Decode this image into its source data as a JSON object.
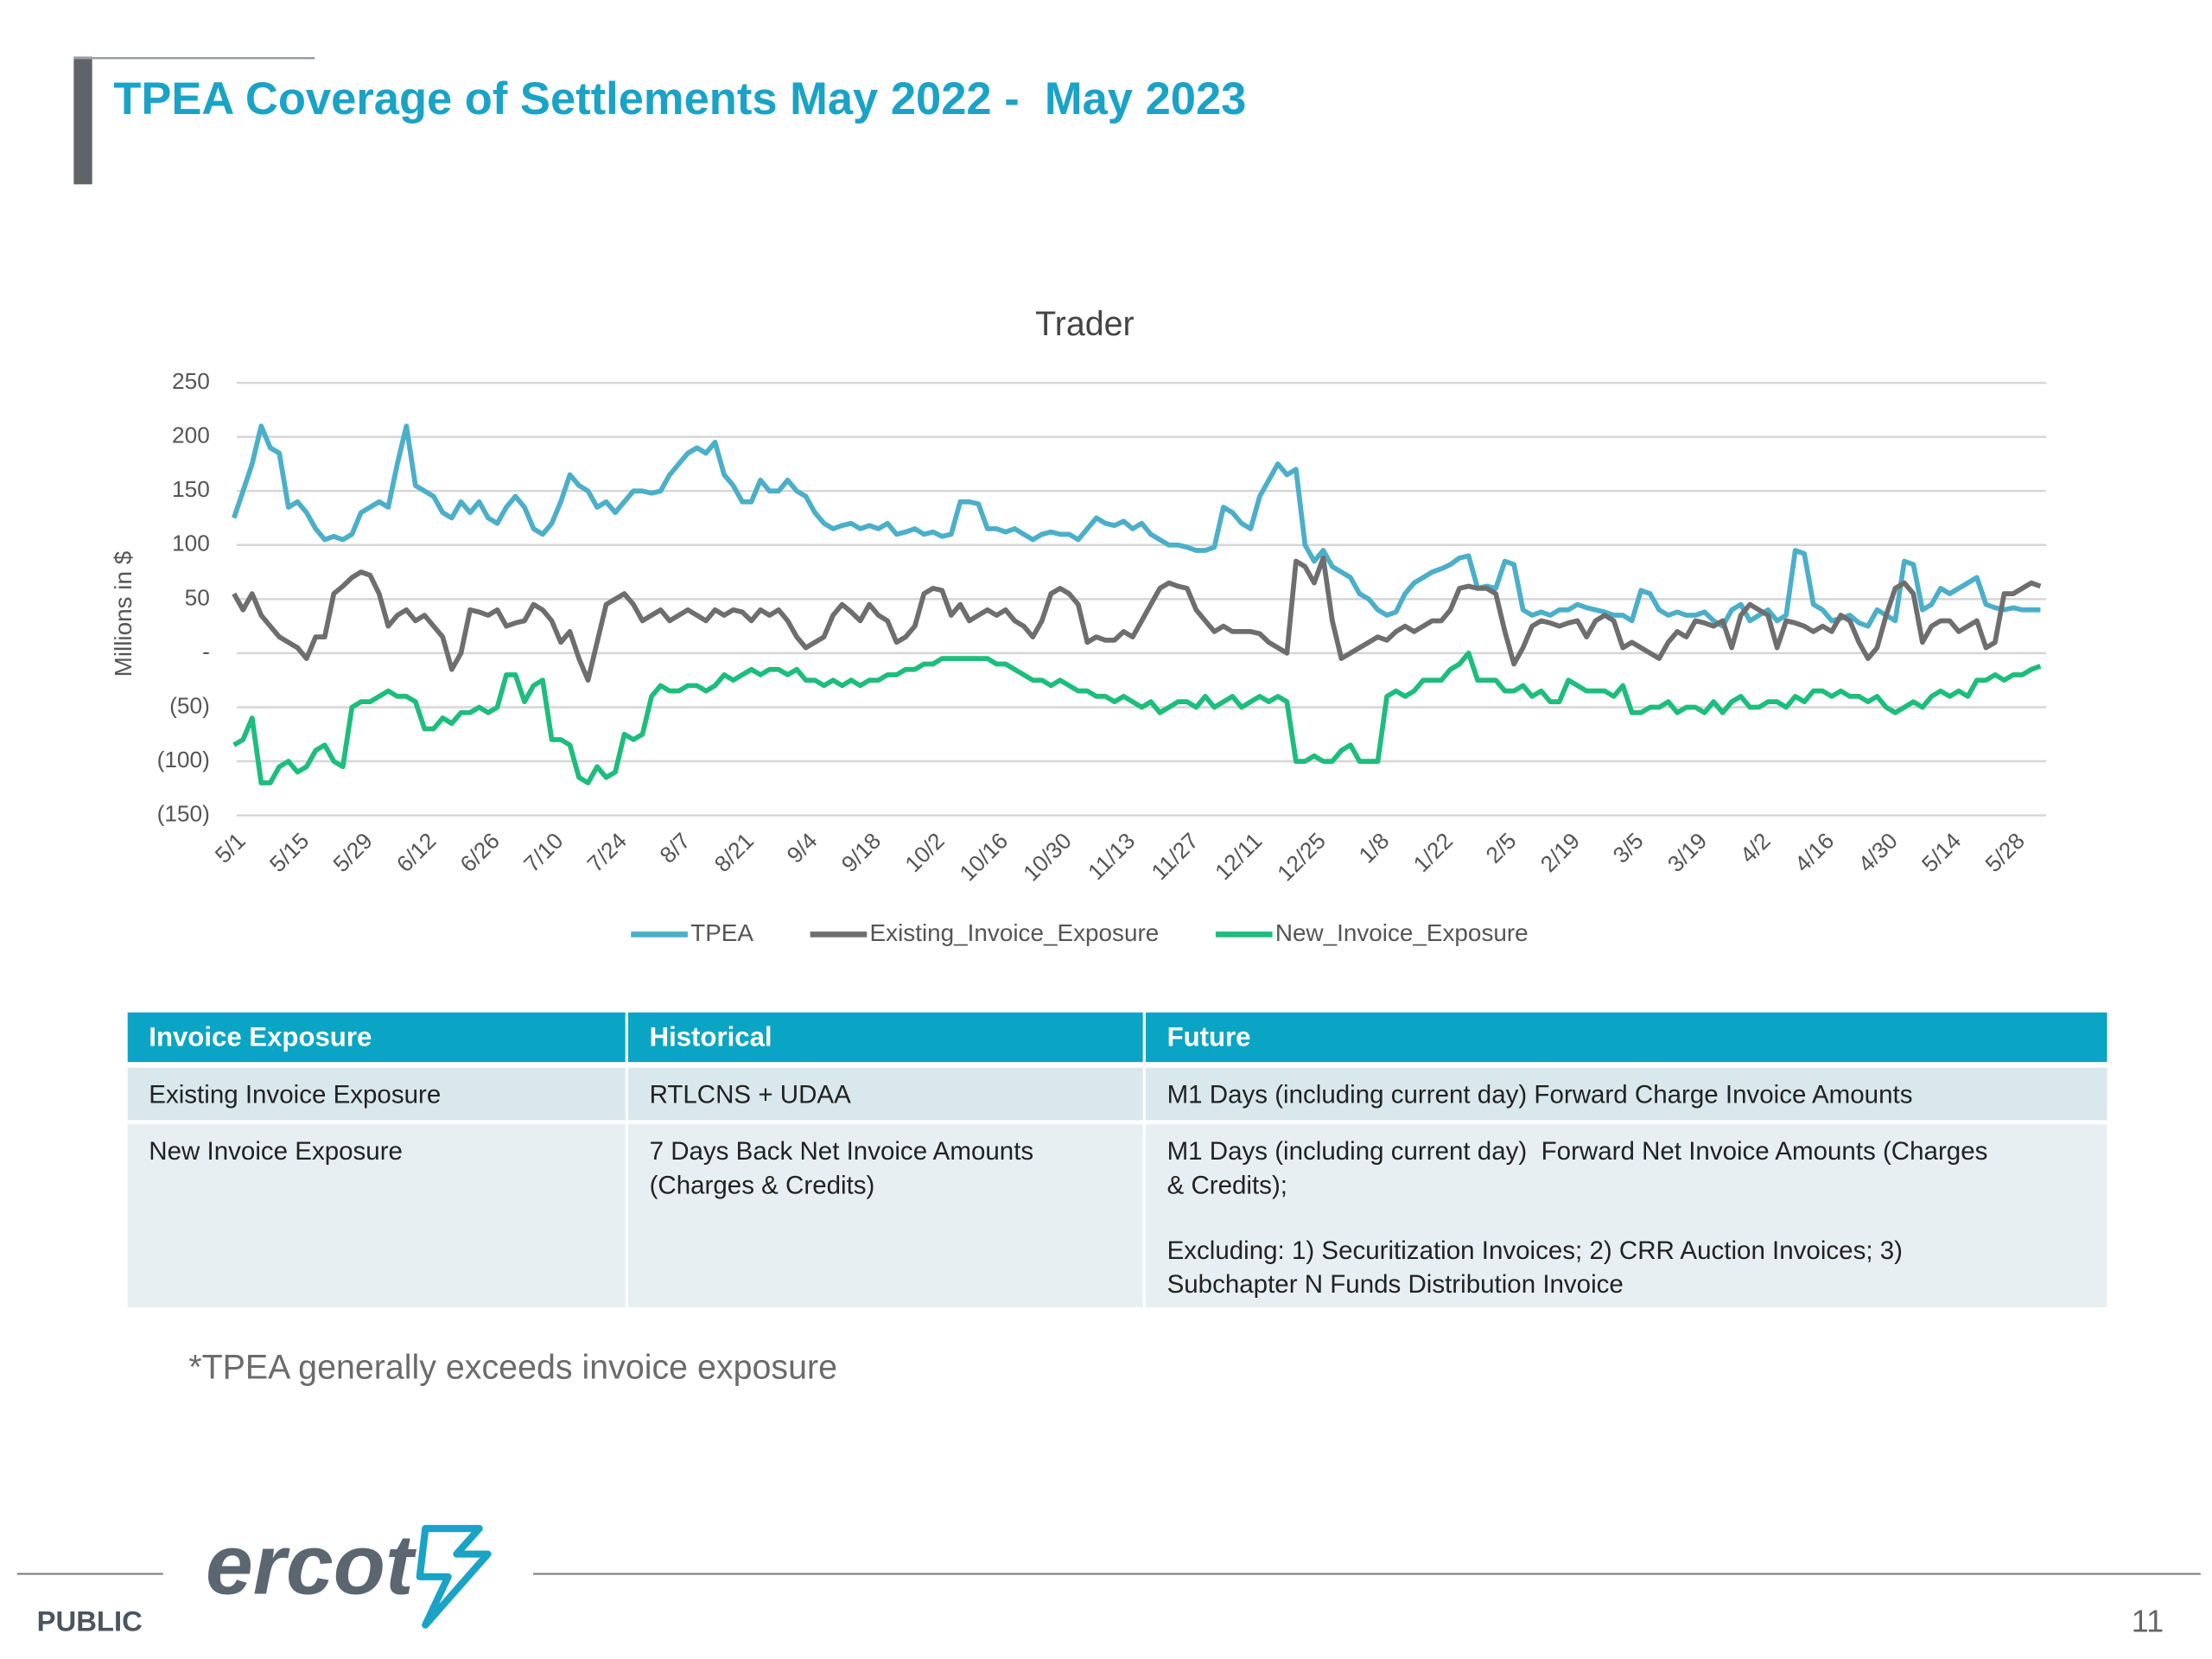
{
  "header": {
    "title": "TPEA Coverage of Settlements May 2022 -  May 2023"
  },
  "chart_data": {
    "type": "line",
    "title": "Trader",
    "y_label": "Millions in $",
    "categories": [
      "5/1",
      null,
      null,
      null,
      null,
      null,
      null,
      "5/15",
      null,
      null,
      null,
      null,
      null,
      null,
      "5/29",
      null,
      null,
      null,
      null,
      null,
      null,
      "6/12",
      null,
      null,
      null,
      null,
      null,
      null,
      "6/26",
      null,
      null,
      null,
      null,
      null,
      null,
      "7/10",
      null,
      null,
      null,
      null,
      null,
      null,
      "7/24",
      null,
      null,
      null,
      null,
      null,
      null,
      "8/7",
      null,
      null,
      null,
      null,
      null,
      null,
      "8/21",
      null,
      null,
      null,
      null,
      null,
      null,
      "9/4",
      null,
      null,
      null,
      null,
      null,
      null,
      "9/18",
      null,
      null,
      null,
      null,
      null,
      null,
      "10/2",
      null,
      null,
      null,
      null,
      null,
      null,
      "10/16",
      null,
      null,
      null,
      null,
      null,
      null,
      "10/30",
      null,
      null,
      null,
      null,
      null,
      null,
      "11/13",
      null,
      null,
      null,
      null,
      null,
      null,
      "11/27",
      null,
      null,
      null,
      null,
      null,
      null,
      "12/11",
      null,
      null,
      null,
      null,
      null,
      null,
      "12/25",
      null,
      null,
      null,
      null,
      null,
      null,
      "1/8",
      null,
      null,
      null,
      null,
      null,
      null,
      "1/22",
      null,
      null,
      null,
      null,
      null,
      null,
      "2/5",
      null,
      null,
      null,
      null,
      null,
      null,
      "2/19",
      null,
      null,
      null,
      null,
      null,
      null,
      "3/5",
      null,
      null,
      null,
      null,
      null,
      null,
      "3/19",
      null,
      null,
      null,
      null,
      null,
      null,
      "4/2",
      null,
      null,
      null,
      null,
      null,
      null,
      "4/16",
      null,
      null,
      null,
      null,
      null,
      null,
      "4/30",
      null,
      null,
      null,
      null,
      null,
      null,
      "5/14",
      null,
      null,
      null,
      null,
      null,
      null,
      "5/28",
      null,
      null,
      null
    ],
    "series": [
      {
        "name": "TPEA",
        "color": "#4bafc9",
        "values": [
          125,
          150,
          175,
          210,
          190,
          185,
          135,
          140,
          130,
          115,
          105,
          108,
          105,
          110,
          130,
          135,
          140,
          135,
          175,
          210,
          155,
          150,
          145,
          130,
          125,
          140,
          130,
          140,
          125,
          120,
          135,
          145,
          135,
          115,
          110,
          120,
          140,
          165,
          155,
          150,
          135,
          140,
          130,
          140,
          150,
          150,
          148,
          150,
          165,
          175,
          185,
          190,
          185,
          195,
          165,
          155,
          140,
          140,
          160,
          150,
          150,
          160,
          150,
          145,
          130,
          120,
          115,
          118,
          120,
          115,
          118,
          115,
          120,
          110,
          112,
          115,
          110,
          112,
          108,
          110,
          140,
          140,
          138,
          115,
          115,
          112,
          115,
          110,
          105,
          110,
          112,
          110,
          110,
          105,
          115,
          125,
          120,
          118,
          122,
          115,
          120,
          110,
          105,
          100,
          100,
          98,
          95,
          95,
          98,
          135,
          130,
          120,
          115,
          145,
          160,
          175,
          165,
          170,
          100,
          85,
          95,
          80,
          75,
          70,
          55,
          50,
          40,
          35,
          38,
          55,
          65,
          70,
          75,
          78,
          82,
          88,
          90,
          60,
          62,
          60,
          85,
          82,
          40,
          35,
          38,
          35,
          40,
          40,
          45,
          42,
          40,
          38,
          35,
          35,
          30,
          58,
          55,
          40,
          35,
          38,
          35,
          35,
          38,
          30,
          25,
          40,
          45,
          30,
          35,
          40,
          30,
          35,
          95,
          92,
          45,
          40,
          30,
          32,
          35,
          28,
          25,
          40,
          35,
          30,
          85,
          82,
          40,
          45,
          60,
          55,
          60,
          65,
          70,
          45,
          42,
          40,
          42,
          40,
          40,
          40
        ]
      },
      {
        "name": "Existing_Invoice_Exposure",
        "color": "#6e6e6e",
        "values": [
          55,
          40,
          55,
          35,
          25,
          15,
          10,
          5,
          -5,
          15,
          15,
          55,
          62,
          70,
          75,
          72,
          55,
          25,
          35,
          40,
          30,
          35,
          25,
          15,
          -15,
          0,
          40,
          38,
          35,
          40,
          25,
          28,
          30,
          45,
          40,
          30,
          10,
          20,
          -5,
          -25,
          10,
          45,
          50,
          55,
          45,
          30,
          35,
          40,
          30,
          35,
          40,
          35,
          30,
          40,
          35,
          40,
          38,
          30,
          40,
          35,
          40,
          30,
          15,
          5,
          10,
          15,
          35,
          45,
          38,
          30,
          45,
          35,
          30,
          10,
          15,
          25,
          55,
          60,
          58,
          35,
          45,
          30,
          35,
          40,
          35,
          40,
          30,
          25,
          15,
          30,
          55,
          60,
          55,
          45,
          10,
          15,
          12,
          12,
          20,
          15,
          30,
          45,
          60,
          65,
          62,
          60,
          40,
          30,
          20,
          25,
          20,
          20,
          20,
          18,
          10,
          5,
          0,
          85,
          80,
          65,
          88,
          30,
          -5,
          0,
          5,
          10,
          15,
          12,
          20,
          25,
          20,
          25,
          30,
          30,
          40,
          60,
          62,
          60,
          60,
          55,
          20,
          -10,
          5,
          25,
          30,
          28,
          25,
          28,
          30,
          15,
          30,
          35,
          30,
          5,
          10,
          5,
          0,
          -5,
          10,
          20,
          15,
          30,
          28,
          25,
          30,
          5,
          35,
          45,
          40,
          35,
          5,
          30,
          28,
          25,
          20,
          25,
          20,
          35,
          30,
          10,
          -5,
          5,
          35,
          60,
          65,
          55,
          10,
          25,
          30,
          30,
          20,
          25,
          30,
          5,
          10,
          55,
          55,
          60,
          65,
          62
        ]
      },
      {
        "name": "New_Invoice_Exposure",
        "color": "#1dbd7d",
        "values": [
          -85,
          -80,
          -60,
          -120,
          -120,
          -105,
          -100,
          -110,
          -105,
          -90,
          -85,
          -100,
          -105,
          -50,
          -45,
          -45,
          -40,
          -35,
          -40,
          -40,
          -45,
          -70,
          -70,
          -60,
          -65,
          -55,
          -55,
          -50,
          -55,
          -50,
          -20,
          -20,
          -45,
          -30,
          -25,
          -80,
          -80,
          -85,
          -115,
          -120,
          -105,
          -115,
          -110,
          -75,
          -80,
          -75,
          -40,
          -30,
          -35,
          -35,
          -30,
          -30,
          -35,
          -30,
          -20,
          -25,
          -20,
          -15,
          -20,
          -15,
          -15,
          -20,
          -15,
          -25,
          -25,
          -30,
          -25,
          -30,
          -25,
          -30,
          -25,
          -25,
          -20,
          -20,
          -15,
          -15,
          -10,
          -10,
          -5,
          -5,
          -5,
          -5,
          -5,
          -5,
          -10,
          -10,
          -15,
          -20,
          -25,
          -25,
          -30,
          -25,
          -30,
          -35,
          -35,
          -40,
          -40,
          -45,
          -40,
          -45,
          -50,
          -45,
          -55,
          -50,
          -45,
          -45,
          -50,
          -40,
          -50,
          -45,
          -40,
          -50,
          -45,
          -40,
          -45,
          -40,
          -45,
          -100,
          -100,
          -95,
          -100,
          -100,
          -90,
          -85,
          -100,
          -100,
          -100,
          -40,
          -35,
          -40,
          -35,
          -25,
          -25,
          -25,
          -15,
          -10,
          0,
          -25,
          -25,
          -25,
          -35,
          -35,
          -30,
          -40,
          -35,
          -45,
          -45,
          -25,
          -30,
          -35,
          -35,
          -35,
          -40,
          -30,
          -55,
          -55,
          -50,
          -50,
          -45,
          -55,
          -50,
          -50,
          -55,
          -45,
          -55,
          -45,
          -40,
          -50,
          -50,
          -45,
          -45,
          -50,
          -40,
          -45,
          -35,
          -35,
          -40,
          -35,
          -40,
          -40,
          -45,
          -40,
          -50,
          -55,
          -50,
          -45,
          -50,
          -40,
          -35,
          -40,
          -35,
          -40,
          -25,
          -25,
          -20,
          -25,
          -20,
          -20,
          -15,
          -12
        ]
      }
    ],
    "ylim": [
      -150,
      250
    ],
    "yticks": [
      {
        "value": -150,
        "label": "(150)"
      },
      {
        "value": -100,
        "label": "(100)"
      },
      {
        "value": -50,
        "label": "(50)"
      },
      {
        "value": 0,
        "label": "-"
      },
      50,
      100,
      150,
      200,
      250
    ],
    "grid": true,
    "legend": "bottom"
  },
  "table": {
    "header": [
      "Invoice Exposure",
      "Historical",
      "Future"
    ],
    "rows": [
      [
        [
          [
            "Existing Invoice Exposure"
          ]
        ],
        [
          [
            "RTLCNS + UDAA"
          ]
        ],
        [
          [
            "M1 Days (including current day) Forward Charge Invoice Amounts"
          ]
        ]
      ],
      [
        [
          [
            "New Invoice Exposure"
          ]
        ],
        [
          [
            "7 Days Back Net Invoice Amounts",
            "(Charges & Credits)"
          ]
        ],
        [
          [
            "M1 Days (including current day)  Forward Net Invoice Amounts (Charges",
            "& Credits);"
          ],
          [
            "Excluding: 1) Securitization Invoices; 2) CRR Auction Invoices; 3)",
            "Subchapter N Funds Distribution Invoice"
          ]
        ]
      ]
    ]
  },
  "note": "*TPEA generally exceeds invoice exposure",
  "footer": {
    "logo": "ercot",
    "classification": "PUBLIC",
    "page": 11
  }
}
